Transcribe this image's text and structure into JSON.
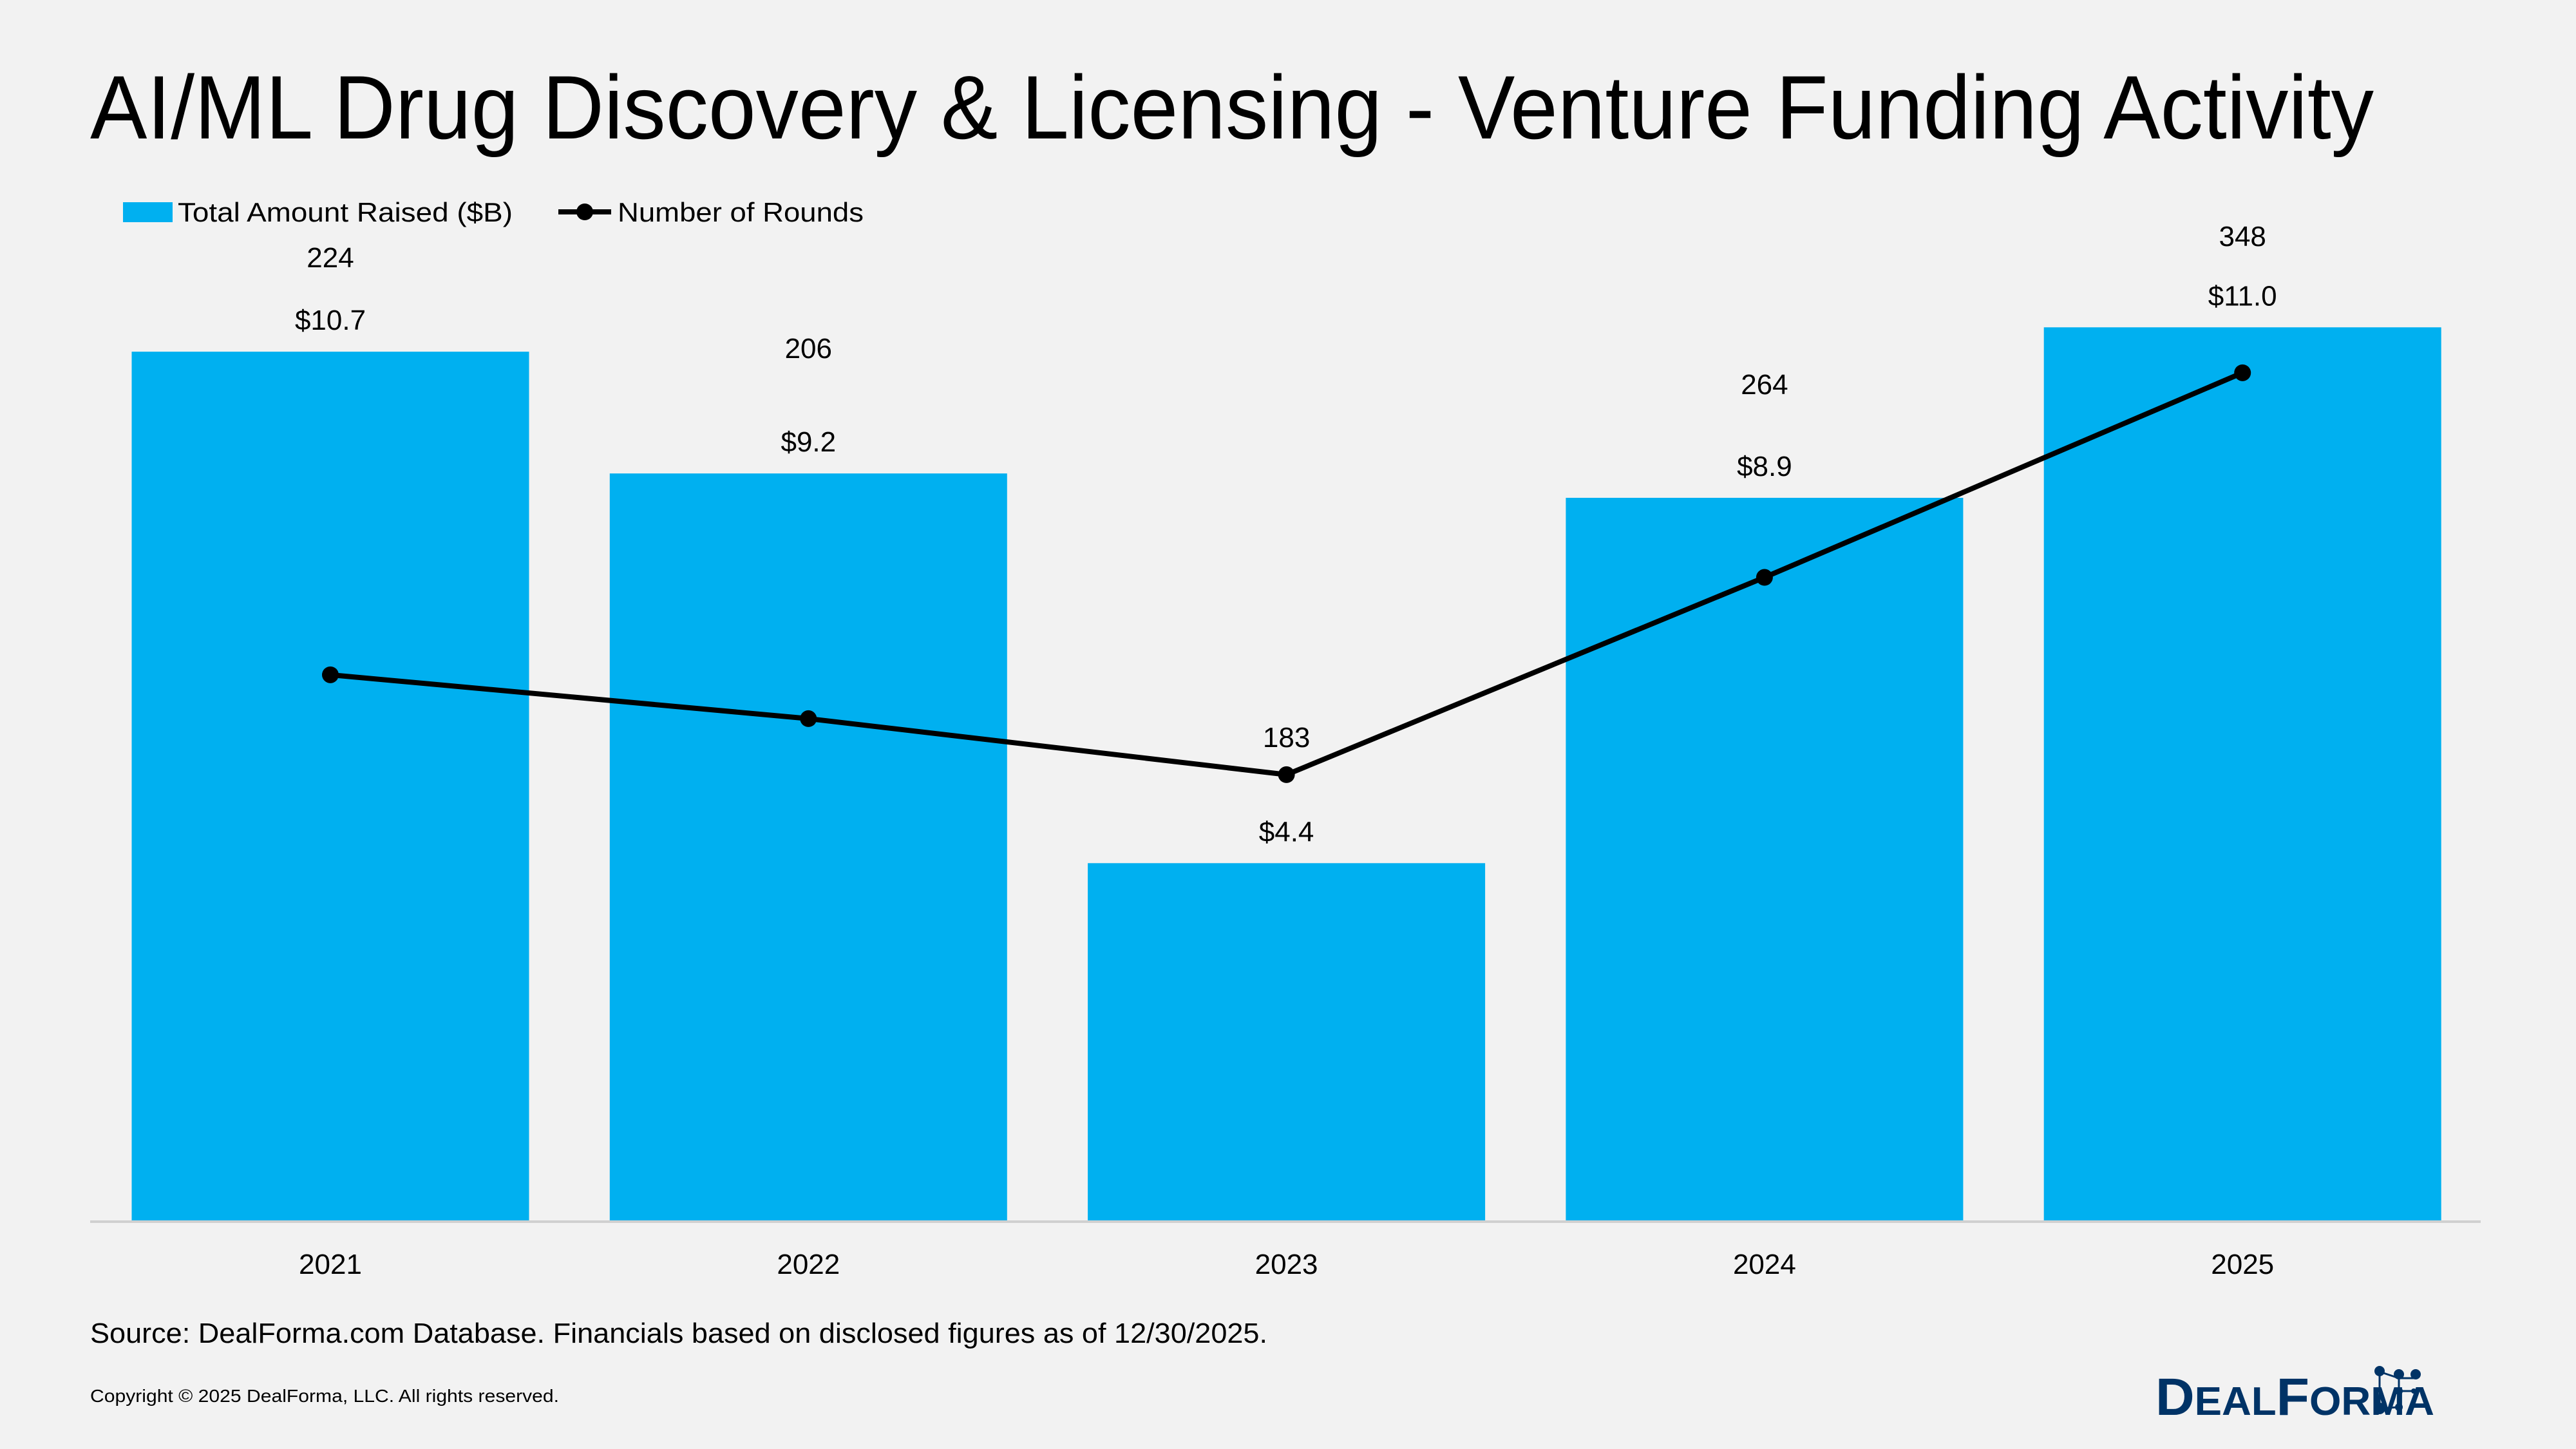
{
  "title": "AI/ML Drug Discovery & Licensing - Venture Funding Activity",
  "source": "Source: DealForma.com Database. Financials based on disclosed figures as of 12/30/2025.",
  "copyright": "Copyright © 2025 DealForma, LLC. All rights reserved.",
  "logo": {
    "text_big1": "D",
    "text_small1": "EAL",
    "text_big2": "F",
    "text_small2": "ORMA",
    "color": "#003366"
  },
  "chart_data": {
    "type": "bar+line",
    "categories": [
      "2021",
      "2022",
      "2023",
      "2024",
      "2025"
    ],
    "series": [
      {
        "name": "Total Amount Raised ($B)",
        "type": "bar",
        "axis": "primary",
        "values": [
          10.7,
          9.2,
          4.4,
          8.9,
          11.0
        ],
        "labels": [
          "$10.7",
          "$9.2",
          "$4.4",
          "$8.9",
          "$11.0"
        ],
        "color": "#00b0f0"
      },
      {
        "name": "Number of Rounds",
        "type": "line",
        "axis": "secondary",
        "values": [
          224,
          206,
          183,
          264,
          348
        ],
        "labels": [
          "224",
          "206",
          "183",
          "264",
          "348"
        ],
        "color": "#000000"
      }
    ],
    "ylim": [
      0,
      15
    ],
    "y2lim": [
      0,
      500
    ],
    "grid": false,
    "legend": "top-left"
  }
}
